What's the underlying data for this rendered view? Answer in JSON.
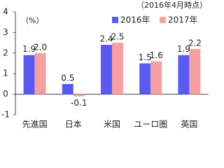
{
  "chart_data": {
    "type": "bar",
    "subtitle": "（2016年4月時点）",
    "y_label": "（%）",
    "categories": [
      "先進国",
      "日本",
      "米国",
      "ユーロ圏",
      "英国"
    ],
    "series": [
      {
        "name": "2016年",
        "color": "#5a5af2",
        "values": [
          1.9,
          0.5,
          2.4,
          1.5,
          1.9
        ],
        "value_labels": [
          "1.9",
          "0.5",
          "2.4",
          "1.5",
          "1.9"
        ]
      },
      {
        "name": "2017年",
        "color": "#f5a0a0",
        "values": [
          2.0,
          -0.1,
          2.5,
          1.6,
          2.2
        ],
        "value_labels": [
          "2.0",
          "-0.1",
          "2.5",
          "1.6",
          "2.2"
        ]
      }
    ],
    "negative_color": "#e02020",
    "ylim": [
      -1,
      4
    ],
    "yticks": [
      -1,
      0,
      1,
      2,
      3,
      4
    ]
  }
}
